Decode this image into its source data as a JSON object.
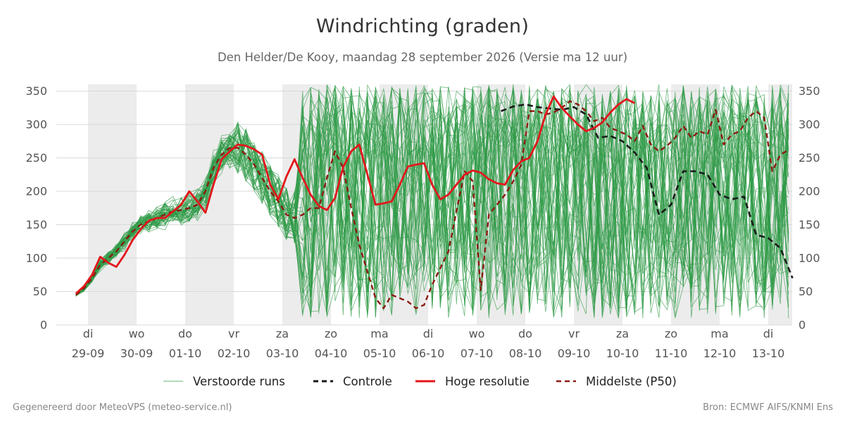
{
  "title": "Windrichting (graden)",
  "subtitle": "Den Helder/De Kooy, maandag 28 september 2026 (Versie ma 12 uur)",
  "footer": {
    "left": "Gegenereerd door MeteoVPS (meteo-service.nl)",
    "right": "Bron: ECMWF AIFS/KNMI Ens"
  },
  "legend": [
    {
      "label": "Verstoorde runs",
      "series": "members"
    },
    {
      "label": "Controle",
      "series": "control"
    },
    {
      "label": "Hoge resolutie",
      "series": "hires"
    },
    {
      "label": "Middelste (P50)",
      "series": "median"
    }
  ],
  "chart_data": {
    "type": "line",
    "title": "Windrichting (graden)",
    "subtitle": "Den Helder/De Kooy, maandag 28 september 2026 (Versie ma 12 uur)",
    "ylim": [
      0,
      360
    ],
    "yticks": [
      0,
      50,
      100,
      150,
      200,
      250,
      300,
      350
    ],
    "xlim_day": [
      -0.75,
      14
    ],
    "x_unit": "days since 29-09 00h",
    "grid": "horizontal",
    "legend_position": "bottom",
    "xticks": [
      {
        "day": 0,
        "weekday": "di",
        "date": "29-09"
      },
      {
        "day": 1,
        "weekday": "wo",
        "date": "30-09"
      },
      {
        "day": 2,
        "weekday": "do",
        "date": "01-10"
      },
      {
        "day": 3,
        "weekday": "vr",
        "date": "02-10"
      },
      {
        "day": 4,
        "weekday": "za",
        "date": "03-10"
      },
      {
        "day": 5,
        "weekday": "zo",
        "date": "04-10"
      },
      {
        "day": 6,
        "weekday": "ma",
        "date": "05-10"
      },
      {
        "day": 7,
        "weekday": "di",
        "date": "06-10"
      },
      {
        "day": 8,
        "weekday": "wo",
        "date": "07-10"
      },
      {
        "day": 9,
        "weekday": "do",
        "date": "08-10"
      },
      {
        "day": 10,
        "weekday": "vr",
        "date": "09-10"
      },
      {
        "day": 11,
        "weekday": "za",
        "date": "10-10"
      },
      {
        "day": 12,
        "weekday": "zo",
        "date": "11-10"
      },
      {
        "day": 13,
        "weekday": "ma",
        "date": "12-10"
      },
      {
        "day": 14,
        "weekday": "di",
        "date": "13-10"
      }
    ],
    "shaded_days": [
      [
        0,
        1
      ],
      [
        2,
        3
      ],
      [
        4,
        5
      ],
      [
        6,
        7
      ],
      [
        8,
        9
      ],
      [
        10,
        11
      ],
      [
        12,
        13
      ],
      [
        14,
        14.5
      ]
    ],
    "colors": {
      "members": "#2e9a46",
      "control": "#1a1a1a",
      "hires": "#e3161b",
      "median": "#8b1a12",
      "shade": "#ececec",
      "grid": "#d9d9d9"
    },
    "series": [
      {
        "name": "Hoge resolutie",
        "key": "hires",
        "x": [
          -0.25,
          -0.083,
          0.083,
          0.25,
          0.417,
          0.583,
          0.75,
          0.917,
          1.083,
          1.25,
          1.417,
          1.583,
          1.75,
          1.917,
          2.083,
          2.25,
          2.417,
          2.583,
          2.75,
          2.917,
          3.083,
          3.25,
          3.417,
          3.583,
          3.75,
          3.917,
          4.083,
          4.25,
          4.417,
          4.583,
          4.75,
          4.917,
          5.083,
          5.25,
          5.417,
          5.583,
          5.75,
          5.917,
          6.083,
          6.25,
          6.417,
          6.583,
          6.75,
          6.917,
          7.083,
          7.25,
          7.417,
          7.583,
          7.75,
          7.917,
          8.083,
          8.25,
          8.417,
          8.583,
          8.75,
          8.917,
          9.083,
          9.25,
          9.417,
          9.583,
          9.75
        ],
        "values": [
          47,
          58,
          75,
          102,
          93,
          87,
          105,
          127,
          143,
          156,
          160,
          160,
          170,
          180,
          200,
          185,
          168,
          210,
          248,
          260,
          270,
          268,
          263,
          255,
          210,
          188,
          222,
          248,
          220,
          195,
          178,
          172,
          190,
          236,
          260,
          270,
          225,
          180,
          182,
          185,
          210,
          237,
          240,
          242,
          210,
          188,
          195,
          210,
          225,
          231,
          228,
          218,
          212,
          210,
          232,
          245,
          250,
          275,
          315,
          342,
          325
        ]
      },
      {
        "name": "Hoge resolutie (vervolg)",
        "key": "hires",
        "x": [
          9.75,
          9.917,
          10.083,
          10.25,
          10.417,
          10.583,
          10.75,
          10.917,
          11.083,
          11.25
        ],
        "values": [
          325,
          312,
          300,
          290,
          295,
          303,
          318,
          330,
          338,
          332
        ]
      },
      {
        "name": "Controle",
        "key": "control",
        "x": [
          8.5,
          8.75,
          9.0,
          9.25,
          9.5,
          9.75,
          10.0,
          10.25,
          10.5,
          10.75,
          11.0,
          11.25,
          11.5,
          11.75,
          12.0,
          12.25,
          12.5,
          12.75,
          13.0,
          13.25,
          13.5,
          13.75,
          14.0,
          14.25,
          14.5
        ],
        "values": [
          320,
          327,
          330,
          326,
          324,
          322,
          326,
          315,
          280,
          283,
          275,
          258,
          235,
          165,
          180,
          230,
          230,
          225,
          195,
          188,
          192,
          135,
          130,
          115,
          70
        ]
      },
      {
        "name": "Middelste (P50)",
        "key": "median",
        "x": [
          -0.25,
          -0.083,
          0.083,
          0.25,
          0.417,
          0.583,
          0.75,
          0.917,
          1.083,
          1.25,
          1.417,
          1.583,
          1.75,
          1.917,
          2.083,
          2.25,
          2.417,
          2.583,
          2.75,
          2.917,
          3.083,
          3.25,
          3.417,
          3.583,
          3.75,
          3.917,
          4.083,
          4.25,
          4.417,
          4.583,
          4.75,
          4.917,
          5.083,
          5.25,
          5.417,
          5.583,
          5.75,
          5.917,
          6.083,
          6.25,
          6.417,
          6.583,
          6.75,
          6.917,
          7.083,
          7.25,
          7.417,
          7.583,
          7.75,
          7.917,
          8.083,
          8.25,
          8.417,
          8.583,
          8.75,
          8.917,
          9.083,
          9.25,
          9.417,
          9.583,
          9.75,
          9.917,
          10.083,
          10.25,
          10.417,
          10.583,
          10.75,
          10.917,
          11.083,
          11.25,
          11.417,
          11.583,
          11.75,
          11.917,
          12.083,
          12.25,
          12.417,
          12.583,
          12.75,
          12.917,
          13.083,
          13.25,
          13.417,
          13.583,
          13.75,
          13.917,
          14.083,
          14.25,
          14.417
        ],
        "values": [
          45,
          55,
          70,
          90,
          100,
          110,
          125,
          140,
          150,
          155,
          160,
          165,
          170,
          172,
          175,
          180,
          200,
          235,
          255,
          265,
          265,
          255,
          240,
          220,
          200,
          185,
          165,
          160,
          165,
          175,
          175,
          220,
          260,
          235,
          175,
          120,
          80,
          40,
          25,
          45,
          40,
          35,
          25,
          30,
          60,
          85,
          110,
          170,
          230,
          215,
          52,
          165,
          180,
          195,
          215,
          240,
          320,
          320,
          315,
          318,
          325,
          335,
          330,
          320,
          305,
          310,
          295,
          290,
          285,
          275,
          298,
          270,
          260,
          268,
          280,
          298,
          280,
          290,
          285,
          322,
          270,
          285,
          290,
          310,
          320,
          310,
          230,
          255,
          262
        ]
      }
    ]
  }
}
